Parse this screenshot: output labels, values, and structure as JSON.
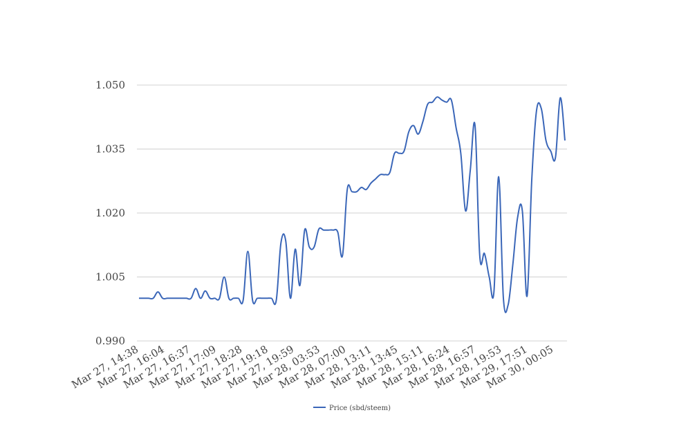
{
  "chart_data": {
    "type": "line",
    "title": "",
    "xlabel": "",
    "ylabel": "",
    "ylim": [
      0.99,
      1.05
    ],
    "yticks": [
      "0.990",
      "1.005",
      "1.020",
      "1.035",
      "1.050"
    ],
    "ytick_values": [
      0.99,
      1.005,
      1.02,
      1.035,
      1.05
    ],
    "xticks": [
      "Mar 27, 14:38",
      "Mar 27, 16:04",
      "Mar 27, 16:37",
      "Mar 27, 17:09",
      "Mar 27, 18:28",
      "Mar 27, 19:18",
      "Mar 27, 19:59",
      "Mar 28, 03:53",
      "Mar 28, 07:00",
      "Mar 28, 13:11",
      "Mar 28, 13:45",
      "Mar 28, 15:11",
      "Mar 28, 16:24",
      "Mar 28, 16:57",
      "Mar 28, 19:53",
      "Mar 29, 17:51",
      "Mar 30, 00:05"
    ],
    "grid": true,
    "legend_position": "bottom",
    "colors": {
      "series": "#3a66b8",
      "grid": "#d0d0d0"
    },
    "series": [
      {
        "name": "Price (sbd/steem)",
        "values": [
          1.0,
          1.0,
          1.0,
          1.0,
          1.0015,
          1.0,
          1.0,
          1.0,
          1.0,
          1.0,
          1.0,
          1.0,
          1.0023,
          1.0,
          1.0017,
          1.0,
          1.0,
          1.0,
          1.005,
          1.0,
          1.0,
          1.0,
          0.9995,
          1.011,
          0.9995,
          1.0,
          1.0,
          1.0,
          1.0,
          0.9995,
          1.013,
          1.0135,
          1.0,
          1.0115,
          1.003,
          1.016,
          1.012,
          1.012,
          1.0162,
          1.016,
          1.016,
          1.016,
          1.0155,
          1.01,
          1.0255,
          1.025,
          1.025,
          1.026,
          1.0255,
          1.027,
          1.028,
          1.029,
          1.029,
          1.0295,
          1.034,
          1.034,
          1.0345,
          1.039,
          1.0405,
          1.0385,
          1.0415,
          1.0455,
          1.046,
          1.0472,
          1.0465,
          1.046,
          1.0465,
          1.04,
          1.034,
          1.0205,
          1.03,
          1.0405,
          1.01,
          1.0105,
          1.005,
          1.0015,
          1.0285,
          1.0,
          0.9985,
          1.008,
          1.019,
          1.0205,
          1.0005,
          1.028,
          1.044,
          1.0445,
          1.037,
          1.0345,
          1.033,
          1.047,
          1.037
        ]
      }
    ]
  }
}
